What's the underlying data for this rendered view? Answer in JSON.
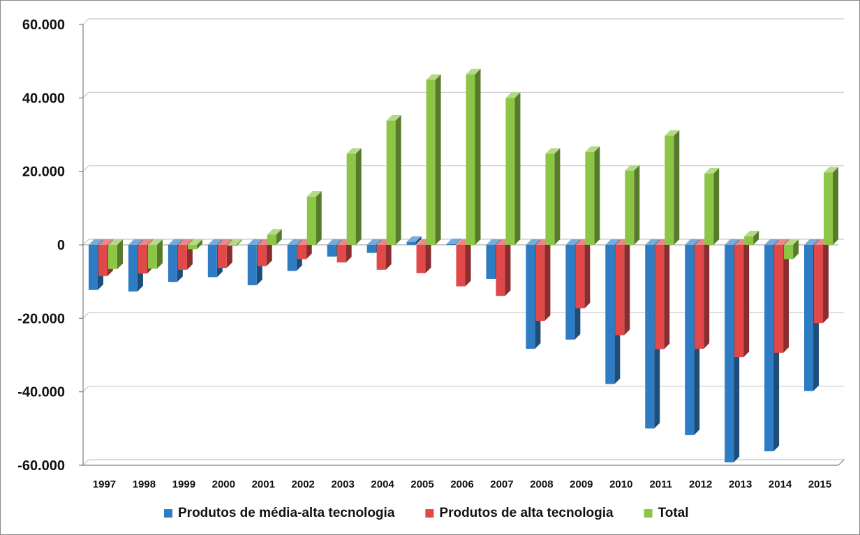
{
  "chart_data": {
    "type": "bar",
    "title": "",
    "xlabel": "",
    "ylabel": "",
    "ylim": [
      -60000,
      60000
    ],
    "yticks": [
      60000,
      40000,
      20000,
      0,
      -20000,
      -40000,
      -60000
    ],
    "ytick_labels": [
      "60.000",
      "40.000",
      "20.000",
      "0",
      "-20.000",
      "-40.000",
      "-60.000"
    ],
    "grid": true,
    "legend_position": "bottom",
    "categories": [
      "1997",
      "1998",
      "1999",
      "2000",
      "2001",
      "2002",
      "2003",
      "2004",
      "2005",
      "2006",
      "2007",
      "2008",
      "2009",
      "2010",
      "2011",
      "2012",
      "2013",
      "2014",
      "2015"
    ],
    "series": [
      {
        "name": "Produtos de média-alta tecnologia",
        "color": "#2E7DC4",
        "values": [
          -12300,
          -12700,
          -10100,
          -8800,
          -11000,
          -7100,
          -3200,
          -2200,
          800,
          200,
          -9300,
          -28300,
          -25800,
          -37900,
          -50000,
          -51800,
          -59200,
          -56200,
          -39800
        ]
      },
      {
        "name": "Produtos de alta tecnologia",
        "color": "#E0484A",
        "values": [
          -8500,
          -7800,
          -6800,
          -6300,
          -5800,
          -3900,
          -4800,
          -6800,
          -7700,
          -11300,
          -13900,
          -20700,
          -17300,
          -24600,
          -28400,
          -28300,
          -30600,
          -29400,
          -21300
        ]
      },
      {
        "name": "Total",
        "color": "#8DC646",
        "values": [
          -6600,
          -6500,
          -1200,
          -300,
          2800,
          13100,
          24800,
          33800,
          44900,
          46400,
          40000,
          24800,
          25300,
          20200,
          29700,
          19400,
          2300,
          -3900,
          19700
        ]
      }
    ]
  }
}
